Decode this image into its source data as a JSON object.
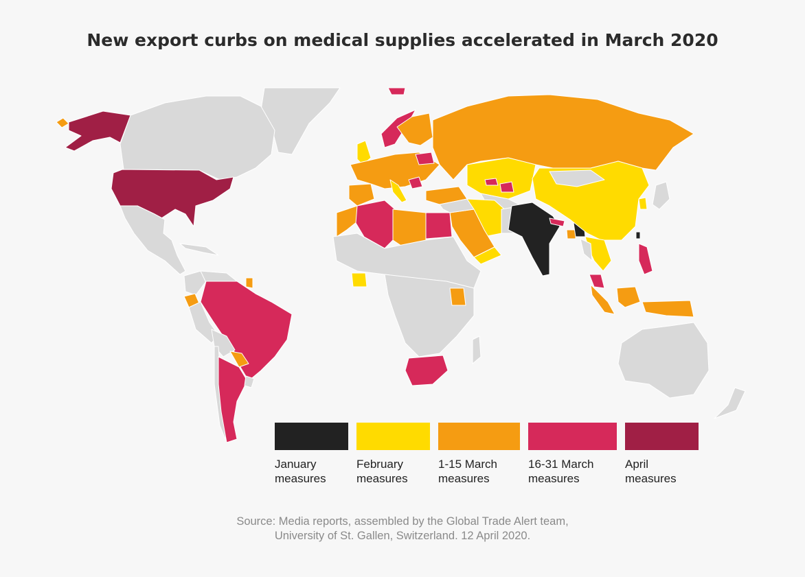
{
  "title": "New export curbs on medical supplies accelerated in March 2020",
  "legend": [
    {
      "line1": "January",
      "line2": "measures",
      "color": "#222222"
    },
    {
      "line1": "February",
      "line2": "measures",
      "color": "#ffdb00"
    },
    {
      "line1": "1-15 March",
      "line2": "measures",
      "color": "#f59c12"
    },
    {
      "line1": "16-31 March",
      "line2": "measures",
      "color": "#d6295a"
    },
    {
      "line1": "April",
      "line2": "measures",
      "color": "#a01f45"
    }
  ],
  "source": {
    "line1": "Source: Media reports, assembled by the Global Trade Alert team,",
    "line2": "University of St. Gallen, Switzerland. 12 April 2020."
  },
  "colors": {
    "no_data": "#d9d9d9",
    "background": "#f7f7f7"
  }
}
